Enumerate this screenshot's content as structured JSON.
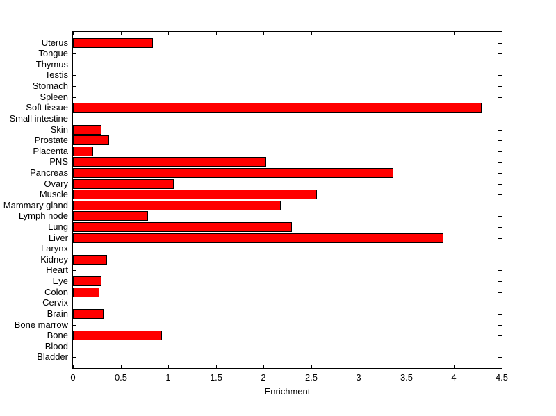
{
  "figure": {
    "background": "#ffffff"
  },
  "chart_data": {
    "type": "bar",
    "orientation": "horizontal",
    "title": "",
    "xlabel": "Enrichment",
    "ylabel": "",
    "xlim": [
      0,
      4.5
    ],
    "xticks": [
      0,
      0.5,
      1,
      1.5,
      2,
      2.5,
      3,
      3.5,
      4,
      4.5
    ],
    "grid": false,
    "legend": false,
    "bar_color": "#FF0000",
    "bar_edge_color": "#000000",
    "axis_color": "#000000",
    "categories": [
      "Uterus",
      "Tongue",
      "Thymus",
      "Testis",
      "Stomach",
      "Spleen",
      "Soft tissue",
      "Small intestine",
      "Skin",
      "Prostate",
      "Placenta",
      "PNS",
      "Pancreas",
      "Ovary",
      "Muscle",
      "Mammary gland",
      "Lymph node",
      "Lung",
      "Liver",
      "Larynx",
      "Kidney",
      "Heart",
      "Eye",
      "Colon",
      "Cervix",
      "Brain",
      "Bone marrow",
      "Bone",
      "Blood",
      "Bladder"
    ],
    "values": [
      0.84,
      0,
      0,
      0,
      0,
      0,
      4.29,
      0,
      0.3,
      0.38,
      0.21,
      2.03,
      3.36,
      1.06,
      2.56,
      2.18,
      0.79,
      2.3,
      3.89,
      0,
      0.36,
      0,
      0.3,
      0.28,
      0,
      0.32,
      0,
      0.93,
      0,
      0
    ]
  }
}
